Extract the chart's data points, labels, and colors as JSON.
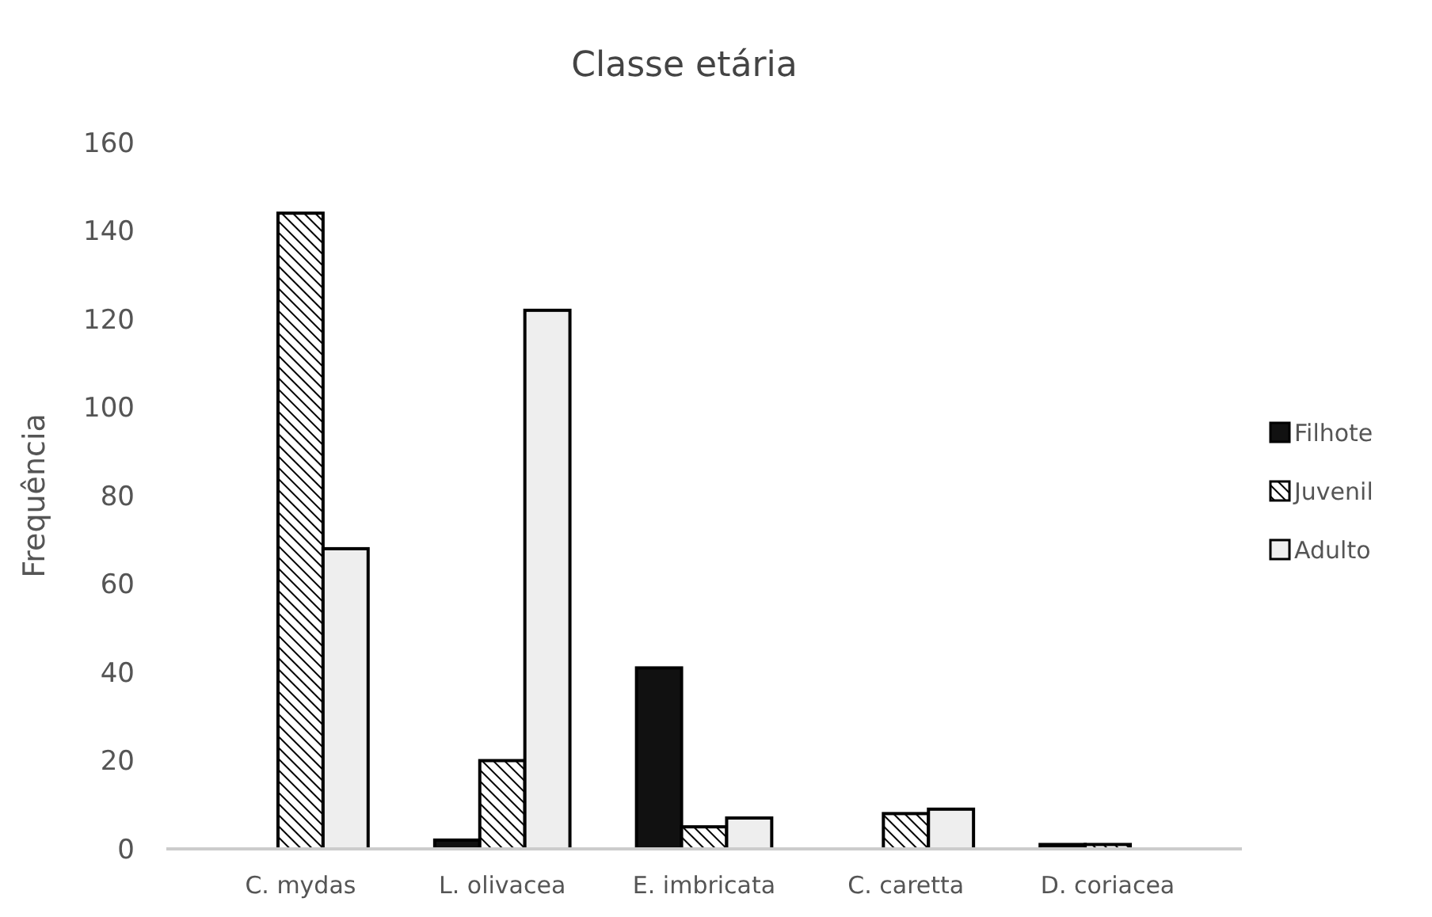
{
  "chart_data": {
    "type": "bar",
    "title": "Classe etária",
    "ylabel": "Frequência",
    "categories": [
      "C. mydas",
      "L. olivacea",
      "E. imbricata",
      "C. caretta",
      "D. coriacea"
    ],
    "series": [
      {
        "name": "Filhote",
        "color": "#111111",
        "values": [
          0,
          2,
          41,
          0,
          1
        ]
      },
      {
        "name": "Juvenil",
        "color": "#000000",
        "values": [
          144,
          20,
          5,
          8,
          1
        ]
      },
      {
        "name": "Adulto",
        "color": "#eeeeee",
        "values": [
          68,
          122,
          7,
          9,
          0
        ]
      }
    ],
    "ylim": [
      0,
      160
    ],
    "yticks": [
      0,
      20,
      40,
      60,
      80,
      100,
      120,
      140,
      160
    ],
    "grid": false,
    "legend": "right"
  }
}
